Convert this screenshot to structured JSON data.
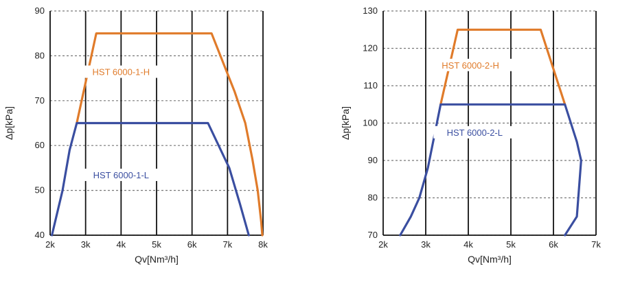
{
  "chart_data": [
    {
      "type": "line",
      "xlabel": "Qv[Nm³/h]",
      "ylabel": "Δp[kPa]",
      "xlim": [
        2000,
        8000
      ],
      "ylim": [
        40,
        90
      ],
      "x_ticks": [
        2000,
        3000,
        4000,
        5000,
        6000,
        7000,
        8000
      ],
      "x_tick_labels": [
        "2k",
        "3k",
        "4k",
        "5k",
        "6k",
        "7k",
        "8k"
      ],
      "y_ticks": [
        40,
        50,
        60,
        70,
        80,
        90
      ],
      "y_tick_labels": [
        "40",
        "50",
        "60",
        "70",
        "80",
        "90"
      ],
      "grid": "y dashed, x solid",
      "series": [
        {
          "name": "HST 6000-1-H",
          "color": "#e07b2a",
          "label_pos": {
            "x": 4000,
            "y": 76
          },
          "points": [
            [
              2750,
              65
            ],
            [
              3300,
              85
            ],
            [
              6550,
              85
            ],
            [
              7200,
              72
            ],
            [
              7500,
              65
            ],
            [
              7700,
              57
            ],
            [
              7850,
              50
            ],
            [
              7950,
              43
            ],
            [
              7980,
              40
            ]
          ]
        },
        {
          "name": "HST 6000-1-L",
          "color": "#3a4ea0",
          "label_pos": {
            "x": 4000,
            "y": 53
          },
          "points": [
            [
              2050,
              40
            ],
            [
              2350,
              50
            ],
            [
              2550,
              59
            ],
            [
              2750,
              65
            ],
            [
              6450,
              65
            ],
            [
              7050,
              55
            ],
            [
              7350,
              47
            ],
            [
              7600,
              40
            ]
          ]
        }
      ]
    },
    {
      "type": "line",
      "xlabel": "Qv[Nm³/h]",
      "ylabel": "Δp[kPa]",
      "xlim": [
        2000,
        7000
      ],
      "ylim": [
        70,
        130
      ],
      "x_ticks": [
        2000,
        3000,
        4000,
        5000,
        6000,
        7000
      ],
      "x_tick_labels": [
        "2k",
        "3k",
        "4k",
        "5k",
        "6k",
        "7k"
      ],
      "y_ticks": [
        70,
        80,
        90,
        100,
        110,
        120,
        130
      ],
      "y_tick_labels": [
        "70",
        "80",
        "90",
        "100",
        "110",
        "120",
        "130"
      ],
      "grid": "y dashed, x solid",
      "series": [
        {
          "name": "HST 6000-2-H",
          "color": "#e07b2a",
          "label_pos": {
            "x": 4050,
            "y": 115
          },
          "points": [
            [
              3350,
              105
            ],
            [
              3750,
              125
            ],
            [
              5700,
              125
            ],
            [
              6270,
              105
            ]
          ]
        },
        {
          "name": "HST 6000-2-L",
          "color": "#3a4ea0",
          "label_pos": {
            "x": 4150,
            "y": 97
          },
          "points": [
            [
              2400,
              70
            ],
            [
              2650,
              75
            ],
            [
              2850,
              80
            ],
            [
              3050,
              88
            ],
            [
              3350,
              105
            ],
            [
              6270,
              105
            ],
            [
              6550,
              95
            ],
            [
              6650,
              90
            ],
            [
              6550,
              75
            ],
            [
              6270,
              70
            ]
          ]
        }
      ]
    }
  ]
}
